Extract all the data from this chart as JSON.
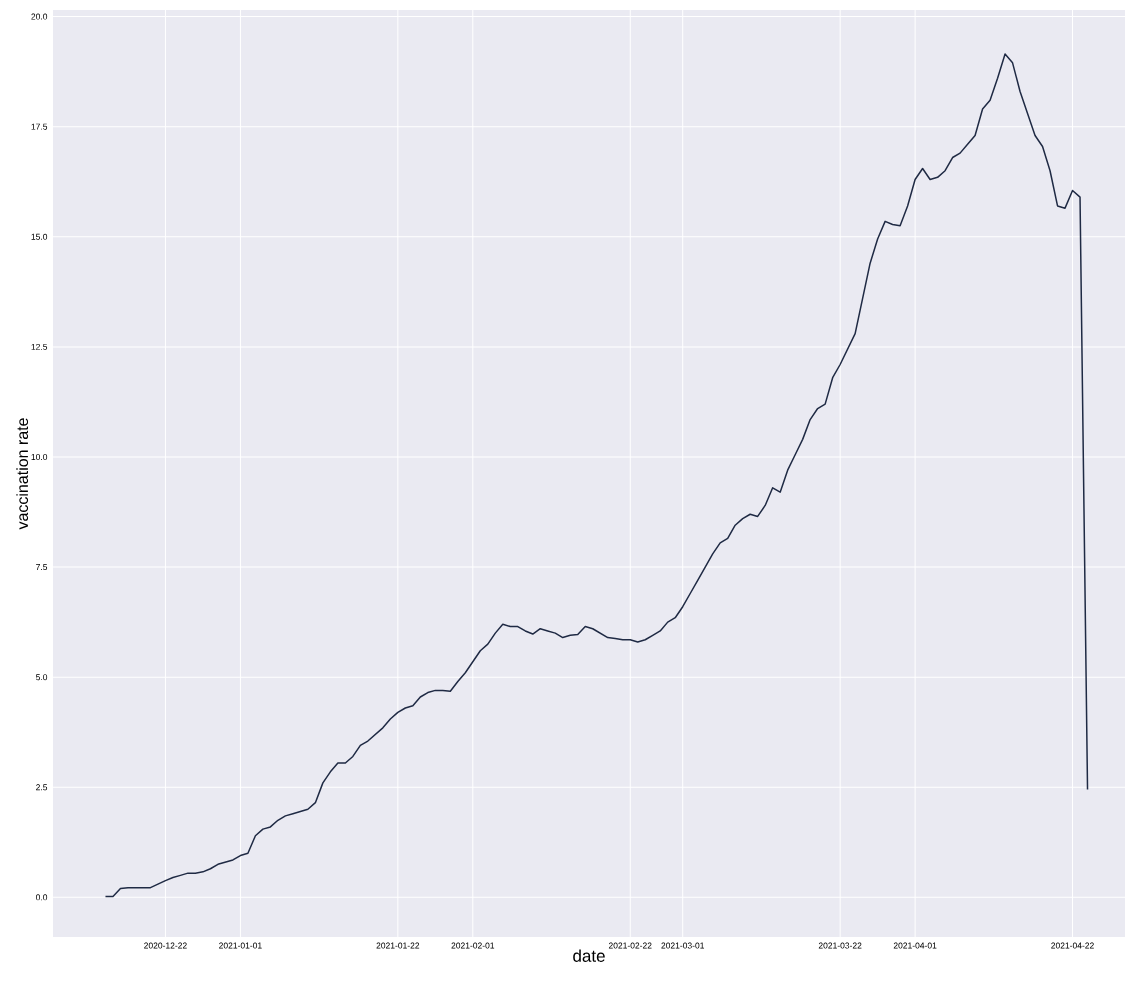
{
  "chart_data": {
    "type": "line",
    "xlabel": "date",
    "ylabel": "vaccination rate",
    "color": "#1f2a44",
    "grid": true,
    "xlim": [
      "2020-12-07",
      "2021-04-29"
    ],
    "ylim": [
      -0.9,
      20.15
    ],
    "xticks": [
      "2020-12-22",
      "2021-01-01",
      "2021-01-22",
      "2021-02-01",
      "2021-02-22",
      "2021-03-01",
      "2021-03-22",
      "2021-04-01",
      "2021-04-22"
    ],
    "yticks": [
      {
        "value": 0,
        "label": "0.0"
      },
      2.5,
      {
        "value": 5,
        "label": "5.0"
      },
      7.5,
      {
        "value": 10,
        "label": "10.0"
      },
      12.5,
      {
        "value": 15,
        "label": "15.0"
      },
      17.5,
      {
        "value": 20,
        "label": "20.0"
      }
    ],
    "x": [
      "2020-12-14",
      "2020-12-15",
      "2020-12-16",
      "2020-12-17",
      "2020-12-18",
      "2020-12-19",
      "2020-12-20",
      "2020-12-21",
      "2020-12-22",
      "2020-12-23",
      "2020-12-24",
      "2020-12-25",
      "2020-12-26",
      "2020-12-27",
      "2020-12-28",
      "2020-12-29",
      "2020-12-30",
      "2020-12-31",
      "2021-01-01",
      "2021-01-02",
      "2021-01-03",
      "2021-01-04",
      "2021-01-05",
      "2021-01-06",
      "2021-01-07",
      "2021-01-08",
      "2021-01-09",
      "2021-01-10",
      "2021-01-11",
      "2021-01-12",
      "2021-01-13",
      "2021-01-14",
      "2021-01-15",
      "2021-01-16",
      "2021-01-17",
      "2021-01-18",
      "2021-01-19",
      "2021-01-20",
      "2021-01-21",
      "2021-01-22",
      "2021-01-23",
      "2021-01-24",
      "2021-01-25",
      "2021-01-26",
      "2021-01-27",
      "2021-01-28",
      "2021-01-29",
      "2021-01-30",
      "2021-01-31",
      "2021-02-01",
      "2021-02-02",
      "2021-02-03",
      "2021-02-04",
      "2021-02-05",
      "2021-02-06",
      "2021-02-07",
      "2021-02-08",
      "2021-02-09",
      "2021-02-10",
      "2021-02-11",
      "2021-02-12",
      "2021-02-13",
      "2021-02-14",
      "2021-02-15",
      "2021-02-16",
      "2021-02-17",
      "2021-02-18",
      "2021-02-19",
      "2021-02-20",
      "2021-02-21",
      "2021-02-22",
      "2021-02-23",
      "2021-02-24",
      "2021-02-25",
      "2021-02-26",
      "2021-02-27",
      "2021-02-28",
      "2021-03-01",
      "2021-03-02",
      "2021-03-03",
      "2021-03-04",
      "2021-03-05",
      "2021-03-06",
      "2021-03-07",
      "2021-03-08",
      "2021-03-09",
      "2021-03-10",
      "2021-03-11",
      "2021-03-12",
      "2021-03-13",
      "2021-03-14",
      "2021-03-15",
      "2021-03-16",
      "2021-03-17",
      "2021-03-18",
      "2021-03-19",
      "2021-03-20",
      "2021-03-21",
      "2021-03-22",
      "2021-03-23",
      "2021-03-24",
      "2021-03-25",
      "2021-03-26",
      "2021-03-27",
      "2021-03-28",
      "2021-03-29",
      "2021-03-30",
      "2021-03-31",
      "2021-04-01",
      "2021-04-02",
      "2021-04-03",
      "2021-04-04",
      "2021-04-05",
      "2021-04-06",
      "2021-04-07",
      "2021-04-08",
      "2021-04-09",
      "2021-04-10",
      "2021-04-11",
      "2021-04-12",
      "2021-04-13",
      "2021-04-14",
      "2021-04-15",
      "2021-04-16",
      "2021-04-17",
      "2021-04-18",
      "2021-04-19",
      "2021-04-20",
      "2021-04-21",
      "2021-04-22",
      "2021-04-23",
      "2021-04-24"
    ],
    "values": [
      0.02,
      0.02,
      0.2,
      0.22,
      0.22,
      0.22,
      0.22,
      0.3,
      0.38,
      0.45,
      0.5,
      0.55,
      0.55,
      0.58,
      0.65,
      0.75,
      0.8,
      0.85,
      0.95,
      1.0,
      1.4,
      1.55,
      1.6,
      1.75,
      1.85,
      1.9,
      1.95,
      2.0,
      2.15,
      2.6,
      2.85,
      3.05,
      3.05,
      3.2,
      3.45,
      3.55,
      3.7,
      3.85,
      4.05,
      4.2,
      4.3,
      4.35,
      4.55,
      4.65,
      4.7,
      4.7,
      4.68,
      4.9,
      5.1,
      5.35,
      5.6,
      5.75,
      6.0,
      6.2,
      6.15,
      6.15,
      6.05,
      5.98,
      6.1,
      6.05,
      6.0,
      5.9,
      5.95,
      5.97,
      6.15,
      6.1,
      6.0,
      5.9,
      5.88,
      5.85,
      5.85,
      5.8,
      5.85,
      5.95,
      6.05,
      6.25,
      6.35,
      6.6,
      6.9,
      7.2,
      7.5,
      7.8,
      8.05,
      8.15,
      8.45,
      8.6,
      8.7,
      8.65,
      8.9,
      9.3,
      9.2,
      9.7,
      10.05,
      10.4,
      10.85,
      11.1,
      11.2,
      11.8,
      12.1,
      12.45,
      12.8,
      13.6,
      14.4,
      14.95,
      15.35,
      15.28,
      15.25,
      15.7,
      16.3,
      16.55,
      16.3,
      16.35,
      16.5,
      16.8,
      16.9,
      17.1,
      17.3,
      17.9,
      18.1,
      18.6,
      19.15,
      18.95,
      18.3,
      17.8,
      17.3,
      17.05,
      16.5,
      15.7,
      15.65,
      16.05,
      15.9,
      2.45
    ]
  }
}
